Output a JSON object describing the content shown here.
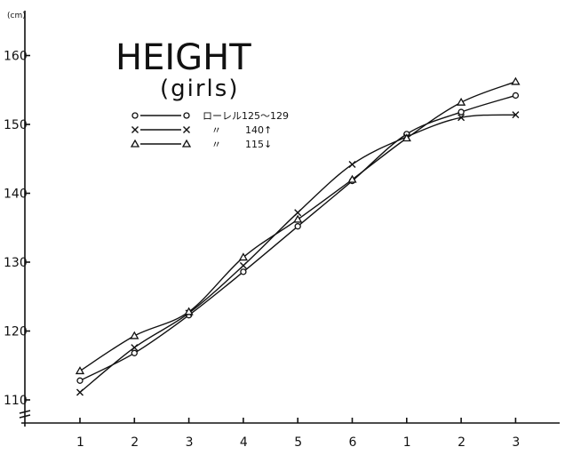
{
  "chart_data": {
    "type": "line",
    "title": "HEIGHT",
    "subtitle": "(girls)",
    "ylabel": "(cm)",
    "xlabel": "",
    "categories": [
      "1",
      "2",
      "3",
      "4",
      "5",
      "6",
      "1",
      "2",
      "3"
    ],
    "ylim": [
      109,
      162
    ],
    "yticks": [
      110,
      120,
      130,
      140,
      150,
      160
    ],
    "grid": false,
    "legend_position": "top-left",
    "series": [
      {
        "marker": "circle",
        "legend_symbol": "O",
        "legend_label": "ローレル125〜129",
        "values": [
          112.8,
          116.8,
          122.3,
          128.6,
          135.2,
          141.8,
          148.6,
          151.8,
          154.2
        ]
      },
      {
        "marker": "x",
        "legend_symbol": "×",
        "legend_label": "140↑",
        "values": [
          111.1,
          117.6,
          122.6,
          129.5,
          137.2,
          144.2,
          148.2,
          151.0,
          151.4
        ]
      },
      {
        "marker": "triangle",
        "legend_symbol": "△",
        "legend_label": "115↓",
        "values": [
          114.2,
          119.3,
          122.8,
          130.7,
          136.2,
          142.0,
          148.0,
          153.2,
          156.2
        ]
      }
    ],
    "legend": {
      "ditto_mark": "〃"
    }
  }
}
